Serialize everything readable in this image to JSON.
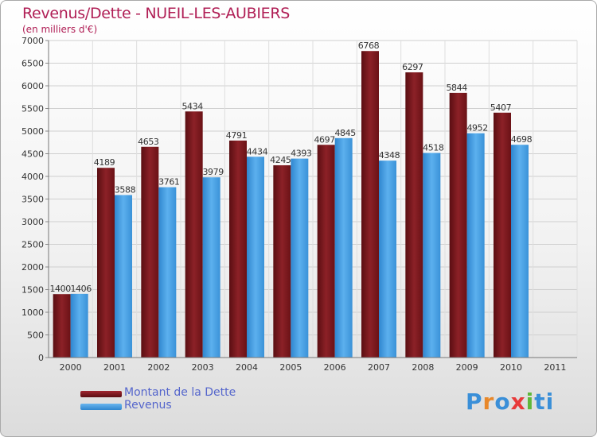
{
  "chart_data": {
    "type": "bar",
    "title": "Revenus/Dette - NUEIL-LES-AUBIERS",
    "subtitle": "(en milliers d'€)",
    "categories": [
      "2000",
      "2001",
      "2002",
      "2003",
      "2004",
      "2005",
      "2006",
      "2007",
      "2008",
      "2009",
      "2010",
      "2011"
    ],
    "series": [
      {
        "name": "Montant de la Dette",
        "color": "#7a1418",
        "values": [
          1400,
          4189,
          4653,
          5434,
          4791,
          4245,
          4697,
          6768,
          6297,
          5844,
          5407,
          null
        ]
      },
      {
        "name": "Revenus",
        "color": "#3d9be0",
        "values": [
          1406,
          3588,
          3761,
          3979,
          4434,
          4393,
          4845,
          4348,
          4518,
          4952,
          4698,
          null
        ]
      }
    ],
    "yticks": [
      0,
      500,
      1000,
      1500,
      2000,
      2500,
      3000,
      3500,
      4000,
      4500,
      5000,
      5500,
      6000,
      6500,
      7000
    ],
    "ylim": [
      0,
      7000
    ],
    "grid": true,
    "legend_position": "bottom-left"
  },
  "legend": {
    "dette_label": "Montant de la Dette",
    "revenus_label": "Revenus"
  },
  "logo": {
    "text": "Proxiti",
    "letters": [
      "P",
      "r",
      "o",
      "x",
      "i",
      "t",
      "i"
    ],
    "colors": [
      "#3a8fd8",
      "#e8882a",
      "#3a8fd8",
      "#e83a3a",
      "#5fb83a",
      "#3a8fd8",
      "#3a8fd8"
    ]
  }
}
